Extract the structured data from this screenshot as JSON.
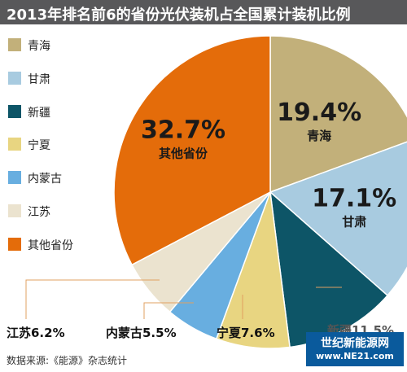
{
  "title": "2013年排名前6的省份光伏装机占全国累计装机比例",
  "source": "数据来源:《能源》杂志统计",
  "watermark": {
    "line1": "世纪新能源网",
    "line2": "www.NE21.com"
  },
  "colors": {
    "title_bg": "#58585a"
  },
  "chart_data": {
    "type": "pie",
    "title": "2013年排名前6的省份光伏装机占全国累计装机比例",
    "legend_position": "left",
    "slices": [
      {
        "label": "青海",
        "value": 19.4,
        "display": "19.4%",
        "color": "#c2b07a",
        "label_style": "inside"
      },
      {
        "label": "甘肃",
        "value": 17.1,
        "display": "17.1%",
        "color": "#a8cbe0",
        "label_style": "inside"
      },
      {
        "label": "新疆",
        "value": 11.5,
        "display": "11.5%",
        "color": "#0d5567",
        "label_style": "callout"
      },
      {
        "label": "宁夏",
        "value": 7.6,
        "display": "7.6%",
        "color": "#e8d581",
        "label_style": "callout"
      },
      {
        "label": "内蒙古",
        "value": 5.5,
        "display": "5.5%",
        "color": "#68aee0",
        "label_style": "callout"
      },
      {
        "label": "江苏",
        "value": 6.2,
        "display": "6.2%",
        "color": "#ebe3cf",
        "label_style": "callout"
      },
      {
        "label": "其他省份",
        "value": 32.7,
        "display": "32.7%",
        "color": "#e46c0a",
        "label_style": "inside"
      }
    ]
  }
}
